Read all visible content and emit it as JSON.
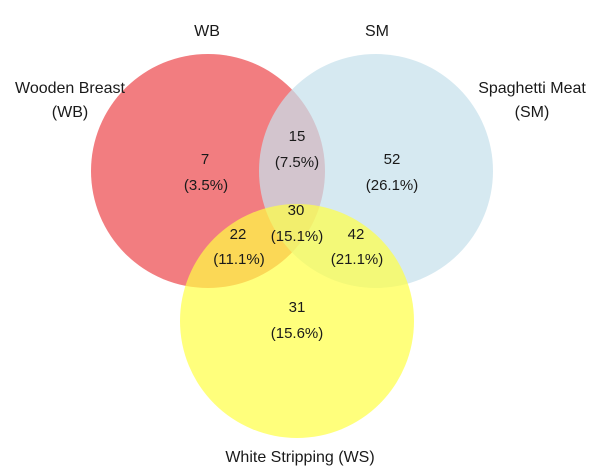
{
  "sets": {
    "wb": {
      "top_label": "WB",
      "label_line1": "Wooden Breast",
      "label_line2": "(WB)",
      "color": "#f06b6e"
    },
    "sm": {
      "top_label": "SM",
      "label_line1": "Spaghetti Meat",
      "label_line2": "(SM)",
      "color": "#c6e1ec"
    },
    "ws": {
      "label": "White Stripping (WS)",
      "color": "#ffff45"
    }
  },
  "regions": {
    "wb_only": {
      "value": "7",
      "percent": "(3.5%)"
    },
    "wb_sm": {
      "value": "15",
      "percent": "(7.5%)"
    },
    "sm_only": {
      "value": "52",
      "percent": "(26.1%)"
    },
    "all": {
      "value": "30",
      "percent": "(15.1%)"
    },
    "wb_ws": {
      "value": "22",
      "percent": "(11.1%)"
    },
    "sm_ws": {
      "value": "42",
      "percent": "(21.1%)"
    },
    "ws_only": {
      "value": "31",
      "percent": "(15.6%)"
    }
  }
}
